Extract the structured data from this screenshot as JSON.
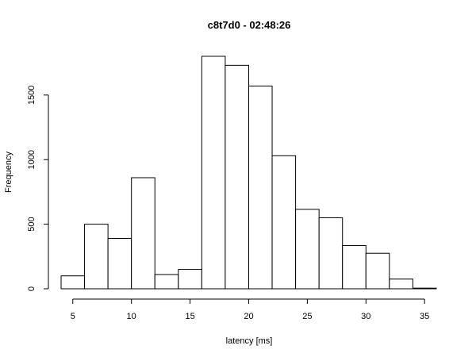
{
  "chart_data": {
    "type": "bar",
    "title": "c8t7d0 - 02:48:26",
    "xlabel": "latency [ms]",
    "ylabel": "Frequency",
    "xlim": [
      4,
      36
    ],
    "ylim": [
      0,
      1800
    ],
    "x_ticks": [
      5,
      10,
      15,
      20,
      25,
      30,
      35
    ],
    "y_ticks": [
      0,
      500,
      1000,
      1500
    ],
    "bin_edges": [
      4,
      6,
      8,
      10,
      12,
      14,
      16,
      18,
      20,
      22,
      24,
      26,
      28,
      30,
      32,
      34,
      36
    ],
    "values": [
      100,
      500,
      390,
      860,
      110,
      150,
      1800,
      1730,
      1570,
      1030,
      615,
      550,
      335,
      275,
      75,
      5
    ],
    "grid": false,
    "legend": "none"
  }
}
